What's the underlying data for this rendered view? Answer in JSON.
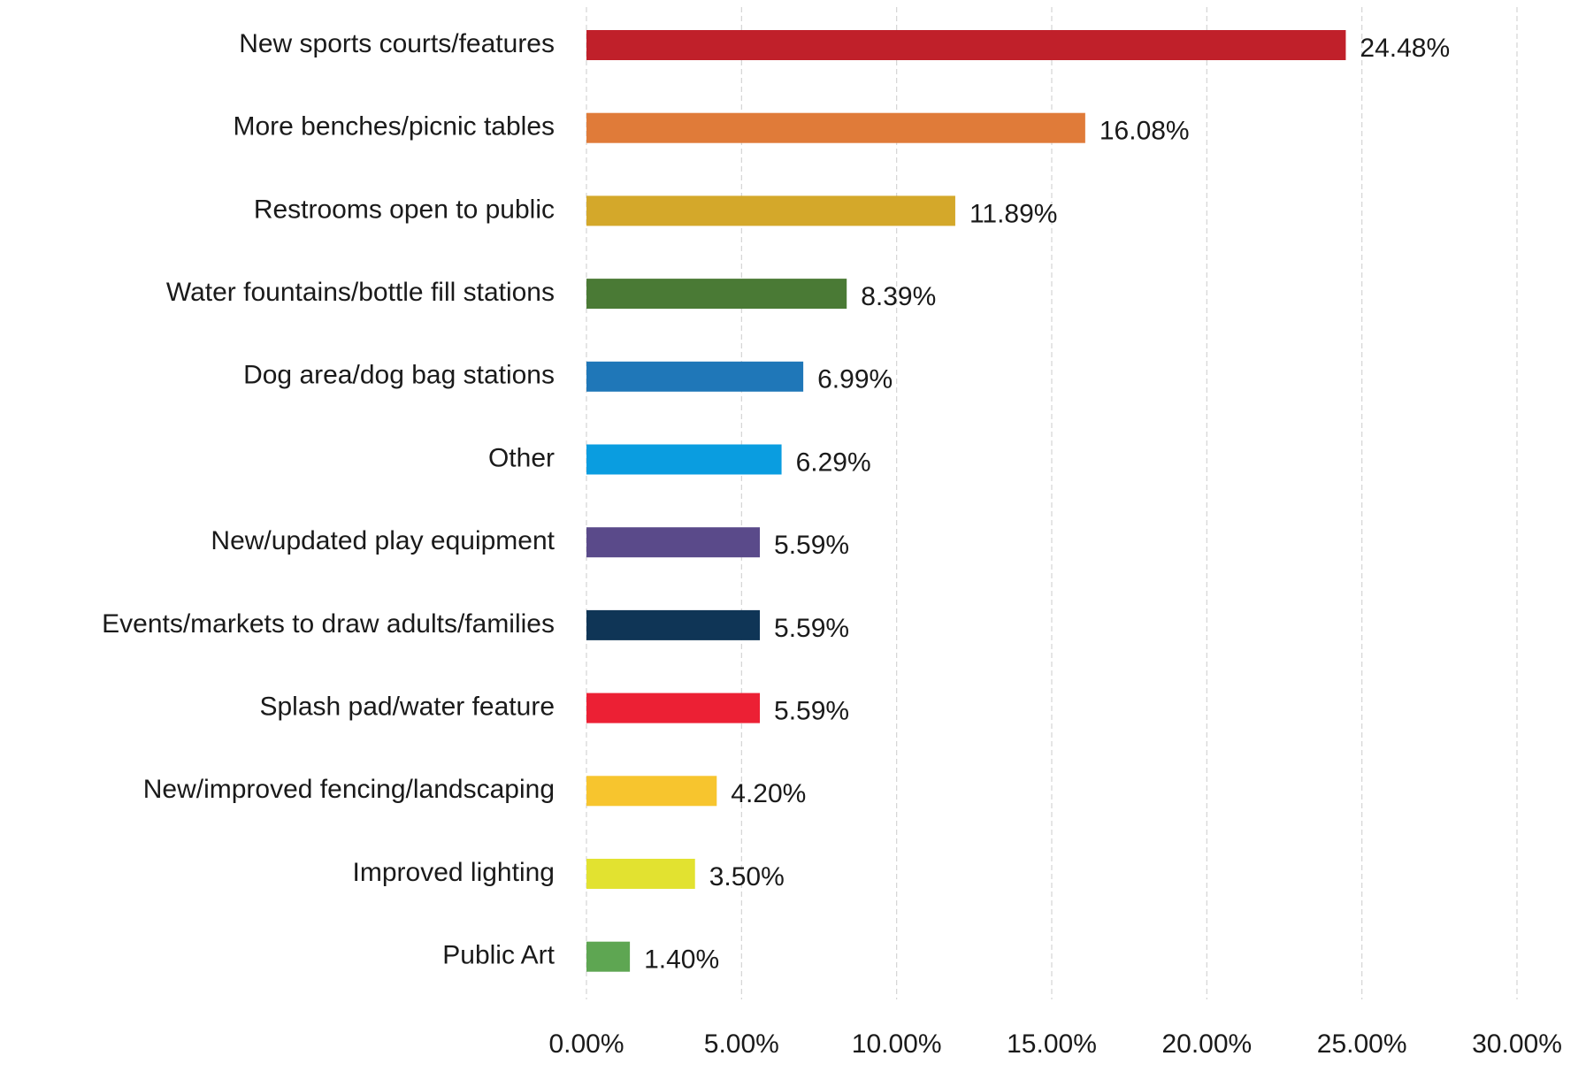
{
  "chart_data": {
    "type": "bar",
    "orientation": "horizontal",
    "categories": [
      "New sports courts/features",
      "More benches/picnic tables",
      "Restrooms open to public",
      "Water fountains/bottle fill stations",
      "Dog area/dog bag stations",
      "Other",
      "New/updated play equipment",
      "Events/markets to draw adults/families",
      "Splash pad/water feature",
      "New/improved fencing/landscaping",
      "Improved lighting",
      "Public Art"
    ],
    "values": [
      24.48,
      16.08,
      11.89,
      8.39,
      6.99,
      6.29,
      5.59,
      5.59,
      5.59,
      4.2,
      3.5,
      1.4
    ],
    "value_labels": [
      "24.48%",
      "16.08%",
      "11.89%",
      "8.39%",
      "6.99%",
      "6.29%",
      "5.59%",
      "5.59%",
      "5.59%",
      "4.20%",
      "3.50%",
      "1.40%"
    ],
    "colors": [
      "#c0202a",
      "#e07b39",
      "#d4a82a",
      "#4a7a35",
      "#1f77b8",
      "#0a9de0",
      "#5a4a8a",
      "#0f3556",
      "#ec2034",
      "#f7c52e",
      "#e2e230",
      "#5ea652"
    ],
    "xlim": [
      0,
      30
    ],
    "xticks": [
      {
        "value": 0,
        "label": "0.00%"
      },
      {
        "value": 5,
        "label": "5.00%"
      },
      {
        "value": 10,
        "label": "10.00%"
      },
      {
        "value": 15,
        "label": "15.00%"
      },
      {
        "value": 20,
        "label": "20.00%"
      },
      {
        "value": 25,
        "label": "25.00%"
      },
      {
        "value": 30,
        "label": "30.00%"
      }
    ],
    "grid": true
  }
}
